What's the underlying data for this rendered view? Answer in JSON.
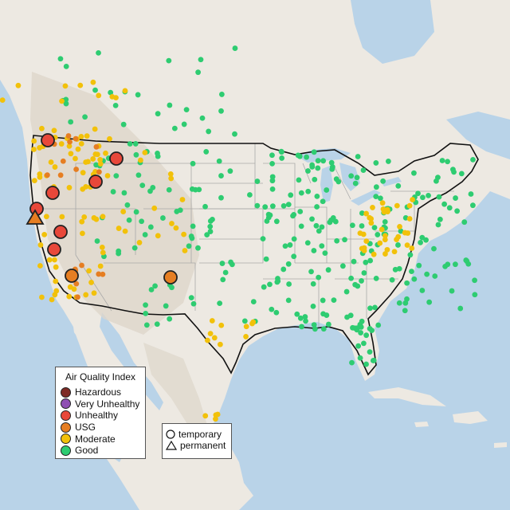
{
  "legend": {
    "title": "Air Quality Index",
    "categories": [
      {
        "label": "Hazardous",
        "color": "#7e2b25"
      },
      {
        "label": "Very Unhealthy",
        "color": "#8f4fb3"
      },
      {
        "label": "Unhealthy",
        "color": "#e8483a"
      },
      {
        "label": "USG",
        "color": "#e67e22"
      },
      {
        "label": "Moderate",
        "color": "#f2c10a"
      },
      {
        "label": "Good",
        "color": "#2ecc71"
      }
    ]
  },
  "monitor_legend": {
    "temporary_label": "temporary",
    "permanent_label": "permanent"
  },
  "colors": {
    "water": "#b9d3e8",
    "land": "#ede9e2",
    "mountain": "#ddd6cb",
    "border": "#111111",
    "state_line": "#a9a9a9",
    "no_data": "#bdbdbd"
  }
}
